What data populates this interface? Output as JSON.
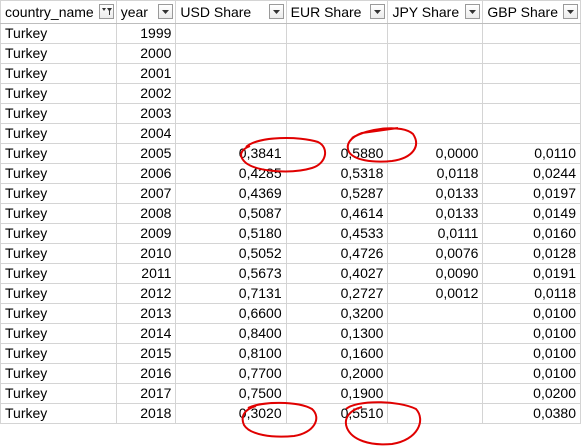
{
  "headers": [
    {
      "label": "country_name",
      "filter": "filter-applied"
    },
    {
      "label": "year",
      "filter": "dropdown"
    },
    {
      "label": "USD Share",
      "filter": "dropdown"
    },
    {
      "label": "EUR Share",
      "filter": "dropdown"
    },
    {
      "label": "JPY Share",
      "filter": "dropdown"
    },
    {
      "label": "GBP Share",
      "filter": "dropdown"
    }
  ],
  "rows": [
    [
      "Turkey",
      "1999",
      "",
      "",
      "",
      ""
    ],
    [
      "Turkey",
      "2000",
      "",
      "",
      "",
      ""
    ],
    [
      "Turkey",
      "2001",
      "",
      "",
      "",
      ""
    ],
    [
      "Turkey",
      "2002",
      "",
      "",
      "",
      ""
    ],
    [
      "Turkey",
      "2003",
      "",
      "",
      "",
      ""
    ],
    [
      "Turkey",
      "2004",
      "",
      "",
      "",
      ""
    ],
    [
      "Turkey",
      "2005",
      "0,3841",
      "0,5880",
      "0,0000",
      "0,0110"
    ],
    [
      "Turkey",
      "2006",
      "0,4285",
      "0,5318",
      "0,0118",
      "0,0244"
    ],
    [
      "Turkey",
      "2007",
      "0,4369",
      "0,5287",
      "0,0133",
      "0,0197"
    ],
    [
      "Turkey",
      "2008",
      "0,5087",
      "0,4614",
      "0,0133",
      "0,0149"
    ],
    [
      "Turkey",
      "2009",
      "0,5180",
      "0,4533",
      "0,0111",
      "0,0160"
    ],
    [
      "Turkey",
      "2010",
      "0,5052",
      "0,4726",
      "0,0076",
      "0,0128"
    ],
    [
      "Turkey",
      "2011",
      "0,5673",
      "0,4027",
      "0,0090",
      "0,0191"
    ],
    [
      "Turkey",
      "2012",
      "0,7131",
      "0,2727",
      "0,0012",
      "0,0118"
    ],
    [
      "Turkey",
      "2013",
      "0,6600",
      "0,3200",
      "",
      "0,0100"
    ],
    [
      "Turkey",
      "2014",
      "0,8400",
      "0,1300",
      "",
      "0,0100"
    ],
    [
      "Turkey",
      "2015",
      "0,8100",
      "0,1600",
      "",
      "0,0100"
    ],
    [
      "Turkey",
      "2016",
      "0,7700",
      "0,2000",
      "",
      "0,0100"
    ],
    [
      "Turkey",
      "2017",
      "0,7500",
      "0,1900",
      "",
      "0,0200"
    ],
    [
      "Turkey",
      "2018",
      "0,3020",
      "0,5510",
      "",
      "0,0380"
    ]
  ],
  "highlight_color": "#e00000"
}
